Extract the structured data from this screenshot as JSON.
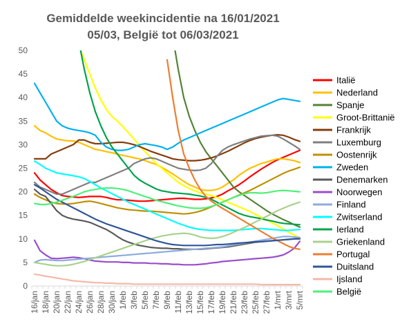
{
  "chart_data": {
    "type": "line",
    "title_line1": "Gemiddelde weekincidentie  na 16/01/2021",
    "title_line2": "05/03, België tot 06/03/2021",
    "xlabel": "",
    "ylabel": "",
    "ylim": [
      0,
      50
    ],
    "yticks": [
      0,
      5,
      10,
      15,
      20,
      25,
      30,
      35,
      40,
      45,
      50
    ],
    "grid": "off",
    "legend_position": "right",
    "x": [
      "16/jan",
      "17/jan",
      "18/jan",
      "19/jan",
      "20/jan",
      "21/jan",
      "22/jan",
      "23/jan",
      "24/jan",
      "25/jan",
      "26/jan",
      "27/jan",
      "28/jan",
      "29/jan",
      "30/jan",
      "31/jan",
      "1/feb",
      "2/feb",
      "3/feb",
      "4/feb",
      "5/feb",
      "6/feb",
      "7/feb",
      "8/feb",
      "9/feb",
      "10/feb",
      "11/feb",
      "12/feb",
      "13/feb",
      "14/feb",
      "15/feb",
      "16/feb",
      "17/feb",
      "18/feb",
      "19/feb",
      "20/feb",
      "21/feb",
      "22/feb",
      "23/feb",
      "24/feb",
      "25/feb",
      "26/feb",
      "27/feb",
      "28/feb",
      "1/mrt",
      "2/mrt",
      "3/mrt",
      "4/mrt",
      "5/mrt"
    ],
    "x_tick_labels": [
      "16/jan",
      "18/jan",
      "20/jan",
      "22/jan",
      "24/jan",
      "26/jan",
      "28/jan",
      "30/jan",
      "1/feb",
      "3/feb",
      "5/feb",
      "7/feb",
      "9/feb",
      "11/feb",
      "13/feb",
      "15/feb",
      "17/feb",
      "19/feb",
      "21/feb",
      "23/feb",
      "25/feb",
      "27/feb",
      "1/mrt",
      "3/mrt",
      "5/mrt"
    ],
    "series": [
      {
        "name": "Italië",
        "color": "#ff0000",
        "values": [
          24,
          22.5,
          21.5,
          20.5,
          19.8,
          19.2,
          19,
          18.9,
          18.8,
          18.9,
          19,
          19,
          19,
          18.8,
          18.5,
          18.3,
          18.3,
          18.2,
          18.1,
          18,
          18,
          18.1,
          18.2,
          18.3,
          18.4,
          18.5,
          18.6,
          18.6,
          18.5,
          18.4,
          18.4,
          18.5,
          18.7,
          19,
          19.5,
          20.2,
          20.8,
          21.5,
          22.3,
          23.2,
          24,
          24.8,
          25.5,
          26.2,
          26.8,
          27.3,
          27.8,
          28.3,
          28.8
        ]
      },
      {
        "name": "Nederland",
        "color": "#ffc000",
        "values": [
          34,
          33,
          32.5,
          31.8,
          31.2,
          31,
          30.8,
          30.8,
          30.5,
          30,
          29.5,
          29,
          28.8,
          28.5,
          28.3,
          28,
          27.7,
          27.5,
          27.2,
          27,
          26.6,
          26.2,
          25.8,
          25.2,
          24.5,
          23.8,
          23,
          22.2,
          21.5,
          21,
          20.5,
          20.3,
          20.3,
          20.5,
          21,
          21.8,
          22.5,
          23.5,
          24.3,
          25,
          25.5,
          26,
          26.3,
          26.7,
          27,
          27,
          26.8,
          26.6,
          26.2
        ]
      },
      {
        "name": "Spanje",
        "color": "#548235",
        "values": [
          null,
          null,
          null,
          null,
          null,
          null,
          null,
          null,
          null,
          null,
          null,
          null,
          null,
          null,
          null,
          null,
          null,
          null,
          null,
          null,
          null,
          null,
          null,
          null,
          null,
          53,
          46,
          40,
          36,
          33,
          30.5,
          28.5,
          27,
          25.5,
          24,
          22.5,
          21,
          20,
          19.2,
          18.4,
          17.6,
          16.8,
          16,
          15.3,
          14.7,
          14.1,
          13.6,
          13,
          12.5
        ]
      },
      {
        "name": "Groot-Brittanië",
        "color": "#ffff00",
        "values": [
          null,
          null,
          null,
          null,
          null,
          null,
          null,
          54,
          51,
          48,
          45,
          42,
          39.5,
          37.5,
          36,
          35,
          33.8,
          32.5,
          31.2,
          29.8,
          28.5,
          27.3,
          26,
          25,
          24,
          23,
          22,
          21.3,
          20.7,
          20.2,
          19.8,
          19.5,
          19.2,
          18.8,
          18.3,
          17.8,
          17.3,
          16.8,
          16.3,
          15.8,
          15.2,
          14.6,
          14,
          13.4,
          12.8,
          12.1,
          11.4,
          10.8,
          10.2
        ]
      },
      {
        "name": "Frankrijk",
        "color": "#843c0c",
        "values": [
          27,
          27,
          27,
          28,
          28.5,
          29,
          29.5,
          30,
          31,
          31,
          30.5,
          30.2,
          30.2,
          30.3,
          30.4,
          30.5,
          30.5,
          30.3,
          30,
          29.6,
          29.1,
          28.6,
          28.2,
          27.8,
          27.4,
          27,
          26.8,
          26.7,
          26.6,
          26.6,
          26.7,
          26.9,
          27.2,
          27.6,
          28.1,
          28.6,
          29.2,
          29.8,
          30.4,
          30.9,
          31.3,
          31.6,
          31.8,
          32,
          32.1,
          32,
          31.6,
          31.1,
          30.7
        ]
      },
      {
        "name": "Luxemburg",
        "color": "#7f7f7f",
        "values": [
          22,
          21,
          20.5,
          20,
          19.5,
          19.5,
          20,
          20.5,
          21,
          21.5,
          22,
          22,
          22.5,
          23,
          23.5,
          24,
          24.5,
          25,
          26,
          26.5,
          27,
          27.2,
          27,
          26.5,
          26,
          25.5,
          25,
          24.8,
          24.6,
          24.5,
          24.6,
          25,
          26,
          27.5,
          28.8,
          29.5,
          30,
          30.4,
          30.8,
          31.2,
          31.5,
          31.8,
          31.9,
          32,
          31.8,
          31.2,
          30.5,
          29.8,
          29
        ]
      },
      {
        "name": "Oostenrijk",
        "color": "#bf9000",
        "values": [
          19.5,
          18.8,
          18.3,
          17.8,
          17.5,
          17.4,
          17.4,
          17.5,
          17.7,
          17.9,
          18,
          17.8,
          17.5,
          17.2,
          16.9,
          16.6,
          16.4,
          16.2,
          16.1,
          16,
          15.9,
          15.9,
          15.8,
          15.7,
          15.6,
          15.5,
          15.4,
          15.3,
          15.4,
          15.6,
          15.9,
          16.3,
          16.8,
          17.3,
          17.8,
          18.3,
          18.8,
          19.3,
          19.8,
          20.3,
          20.9,
          21.5,
          22.1,
          22.7,
          23.3,
          23.9,
          24.4,
          24.8,
          25.2
        ]
      },
      {
        "name": "Zweden",
        "color": "#00b0f0",
        "values": [
          43,
          41,
          39,
          37,
          35,
          34,
          33.5,
          33.2,
          33,
          32.8,
          32.5,
          32,
          30.5,
          29.5,
          29,
          28.8,
          28.8,
          29,
          29.5,
          30,
          30.2,
          30,
          29.8,
          29.5,
          29,
          29.5,
          30.3,
          31,
          31.5,
          32,
          32.5,
          33,
          33.5,
          34,
          34.5,
          35,
          35.5,
          36,
          36.5,
          37,
          37.5,
          38,
          38.5,
          39,
          39.5,
          39.8,
          39.6,
          39.4,
          39.2
        ]
      },
      {
        "name": "Denemarken",
        "color": "#595959",
        "values": [
          20.5,
          19.5,
          19,
          17.5,
          16,
          15,
          14.5,
          14.2,
          14,
          13.8,
          13.5,
          13,
          12.5,
          12,
          11.3,
          10.5,
          9.8,
          9.3,
          8.9,
          8.6,
          8.4,
          8.2,
          8.1,
          8,
          8,
          7.9,
          7.9,
          7.8,
          7.8,
          7.8,
          7.8,
          7.9,
          8,
          8.1,
          8.2,
          8.3,
          8.5,
          8.7,
          8.9,
          9.1,
          9.3,
          9.4,
          9.5,
          9.6,
          9.7,
          9.8,
          9.9,
          10,
          10.1
        ]
      },
      {
        "name": "Noorwegen",
        "color": "#9a4dcc",
        "values": [
          9.7,
          7.5,
          6.6,
          5.9,
          5.8,
          5.9,
          6,
          6.1,
          6,
          5.8,
          5.5,
          5.3,
          5.2,
          5.1,
          5.1,
          5.1,
          5,
          5,
          4.9,
          4.9,
          4.9,
          4.8,
          4.8,
          4.7,
          4.7,
          4.6,
          4.6,
          4.5,
          4.5,
          4.5,
          4.6,
          4.7,
          4.9,
          5,
          5.2,
          5.3,
          5.4,
          5.5,
          5.6,
          5.7,
          5.8,
          5.9,
          6,
          6.1,
          6.3,
          6.6,
          7.2,
          8,
          9.5
        ]
      },
      {
        "name": "Finland",
        "color": "#8faadc",
        "values": [
          5,
          5.5,
          5.6,
          5.5,
          5.4,
          5.4,
          5.5,
          5.6,
          5.7,
          5.8,
          5.9,
          6,
          6.1,
          6.2,
          6.3,
          6.4,
          6.5,
          6.6,
          6.7,
          6.8,
          6.9,
          7,
          7.1,
          7.2,
          7.3,
          7.4,
          7.5,
          7.6,
          7.7,
          7.8,
          7.9,
          8,
          8.1,
          8.2,
          8.3,
          8.5,
          8.7,
          8.9,
          9.1,
          9.3,
          9.5,
          9.7,
          9.9,
          10.1,
          10.3,
          10.5,
          10.5,
          10.4,
          10.3
        ]
      },
      {
        "name": "Zwitserland",
        "color": "#00ffff",
        "values": [
          26.5,
          25.8,
          25,
          24.5,
          24,
          23.8,
          23.6,
          23.4,
          23.2,
          22.8,
          22.2,
          21.5,
          20.8,
          20.2,
          19.6,
          19,
          18.4,
          17.8,
          17.3,
          16.8,
          16.3,
          15.8,
          15.3,
          14.8,
          14.3,
          13.8,
          13.3,
          12.9,
          12.5,
          12.2,
          12,
          11.9,
          11.8,
          11.8,
          11.8,
          11.8,
          11.8,
          11.9,
          12,
          12.1,
          12.2,
          12.2,
          12.1,
          12,
          11.9,
          11.8,
          11.8,
          11.9,
          12
        ]
      },
      {
        "name": "Ierland",
        "color": "#00a34b",
        "values": [
          null,
          null,
          null,
          null,
          null,
          null,
          null,
          null,
          52,
          46,
          41,
          37,
          34,
          31.5,
          29.5,
          28,
          26.5,
          25,
          23.5,
          22.5,
          21.8,
          21.2,
          20.6,
          20.2,
          20,
          19.8,
          19.7,
          19.6,
          19.5,
          19.3,
          19.1,
          18.8,
          18.4,
          17.8,
          17.2,
          16.6,
          16,
          15.4,
          15,
          14.7,
          14.5,
          14.3,
          14,
          13.8,
          13.5,
          13.3,
          13.2,
          13.1,
          13
        ]
      },
      {
        "name": "Griekenland",
        "color": "#a9d18e",
        "values": [
          5,
          4.8,
          4.6,
          4.4,
          4.3,
          4.3,
          4.4,
          4.6,
          4.9,
          5.2,
          5.6,
          6,
          6.4,
          6.8,
          7.2,
          7.6,
          8,
          8.4,
          8.8,
          9.2,
          9.6,
          10,
          10.3,
          10.6,
          10.8,
          11,
          11.1,
          11.2,
          11.1,
          10.8,
          10.4,
          10.2,
          10.1,
          10.2,
          10.5,
          10.9,
          11.4,
          11.9,
          12.4,
          13,
          13.6,
          14.2,
          14.8,
          15.4,
          16,
          16.5,
          17,
          17.4,
          17.8
        ]
      },
      {
        "name": "Portugal",
        "color": "#ed7d31",
        "values": [
          null,
          null,
          null,
          null,
          null,
          null,
          null,
          null,
          null,
          null,
          null,
          null,
          null,
          null,
          null,
          null,
          null,
          null,
          null,
          null,
          null,
          null,
          null,
          null,
          48,
          40,
          33,
          28,
          25,
          22.5,
          20.5,
          19,
          18,
          17.2,
          16.5,
          15.8,
          15.1,
          14.4,
          13.7,
          13,
          12.3,
          11.6,
          10.9,
          10.2,
          9.6,
          9,
          8.4,
          8,
          7.8
        ]
      },
      {
        "name": "Duitsland",
        "color": "#2f5597",
        "values": [
          21.5,
          20.8,
          20,
          19.2,
          18.4,
          17.8,
          17.2,
          16.6,
          16,
          15.4,
          14.8,
          14.2,
          13.7,
          13.2,
          12.8,
          12.4,
          12,
          11.6,
          11.2,
          10.8,
          10.4,
          10,
          9.6,
          9.3,
          9,
          8.8,
          8.7,
          8.6,
          8.6,
          8.6,
          8.6,
          8.6,
          8.7,
          8.8,
          8.8,
          8.9,
          9,
          9.1,
          9.2,
          9.3,
          9.4,
          9.4,
          9.5,
          9.6,
          9.7,
          9.8,
          9.9,
          10,
          10
        ]
      },
      {
        "name": "Ijsland",
        "color": "#f4b8a8",
        "values": [
          2.5,
          2.3,
          2.1,
          1.9,
          1.7,
          1.5,
          1.3,
          1.1,
          1,
          0.9,
          0.8,
          0.7,
          0.7,
          0.6,
          0.6,
          0.5,
          0.5,
          0.5,
          0.4,
          0.4,
          0.4,
          0.4,
          0.4,
          0.4,
          0.4,
          0.4,
          0.4,
          0.4,
          0.4,
          0.4,
          0.4,
          0.4,
          0.4,
          0.4,
          0.4,
          0.4,
          0.4,
          0.4,
          0.4,
          0.4,
          0.4,
          0.3,
          0.3,
          0.3,
          0.3,
          0.3,
          0.3,
          0.3,
          0.3
        ]
      },
      {
        "name": "België",
        "color": "#4ef07a",
        "values": [
          17.5,
          17.3,
          17.3,
          17.5,
          17.8,
          18.2,
          18.6,
          19,
          19.5,
          20,
          20.3,
          20.5,
          20.7,
          20.8,
          20.8,
          20.7,
          20.5,
          20.2,
          19.8,
          19.4,
          19,
          18.6,
          18.2,
          17.9,
          17.6,
          17.3,
          17,
          16.8,
          16.6,
          16.5,
          16.5,
          16.6,
          16.9,
          17.3,
          17.8,
          18.3,
          18.8,
          19.2,
          19.6,
          19.8,
          19.8,
          19.7,
          19.8,
          20,
          20.2,
          20.3,
          20.2,
          20.1,
          20
        ]
      }
    ]
  }
}
